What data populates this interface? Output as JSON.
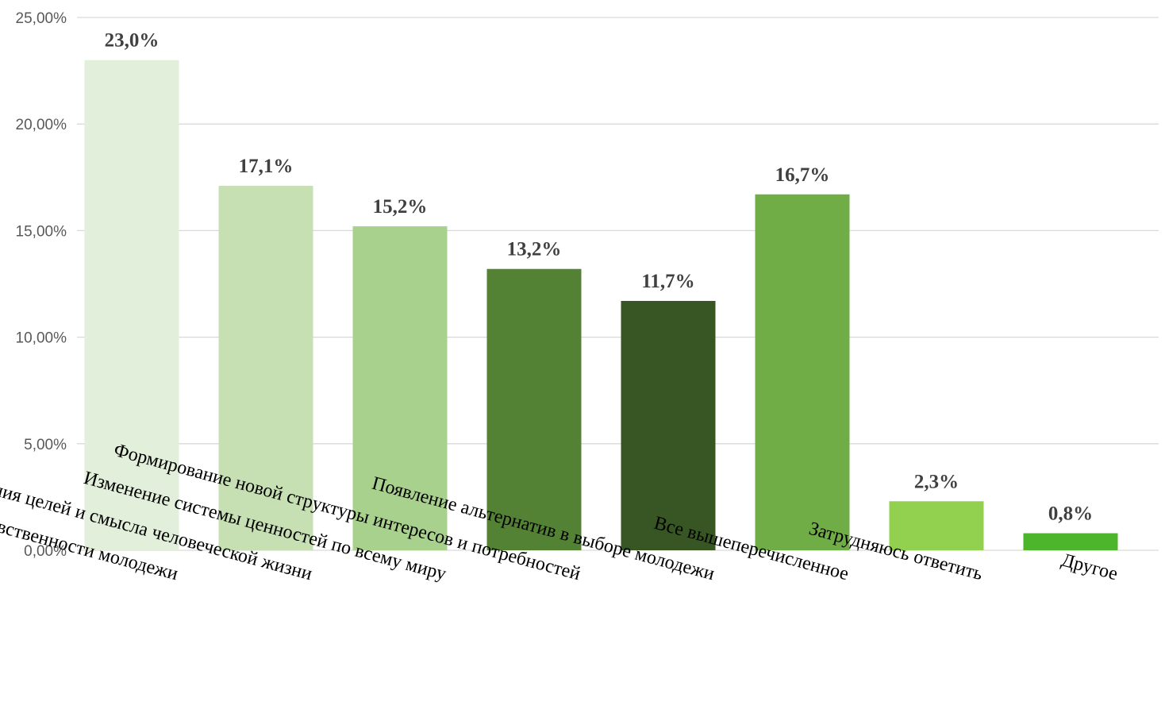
{
  "chart_data": {
    "type": "bar",
    "title": "",
    "xlabel": "",
    "ylabel": "",
    "ylim": [
      0,
      25
    ],
    "yticks": [
      0,
      5,
      10,
      15,
      20,
      25
    ],
    "ytick_labels": [
      "0,00%",
      "5,00%",
      "10,00%",
      "15,00%",
      "20,00%",
      "25,00%"
    ],
    "grid": true,
    "legend": "none",
    "categories": [
      "Изменение основной составляющей нравственности молодежи",
      "Формирование нового видения целей и смысла человеческой жизни",
      "Изменение системы ценностей по всему миру",
      "Формирование новой структуры интересов и потребностей",
      "Появление альтернатив в выборе молодежи",
      "Все вышеперечисленное",
      "Затрудняюсь ответить",
      "Другое"
    ],
    "values": [
      23.0,
      17.1,
      15.2,
      13.2,
      11.7,
      16.7,
      2.3,
      0.8
    ],
    "data_labels": [
      "23,0%",
      "17,1%",
      "15,2%",
      "13,2%",
      "11,7%",
      "16,7%",
      "2,3%",
      "0,8%"
    ],
    "colors": [
      "#e2efda",
      "#c6e0b4",
      "#a9d18e",
      "#548235",
      "#375623",
      "#70ad47",
      "#92d050",
      "#4db52b"
    ]
  }
}
